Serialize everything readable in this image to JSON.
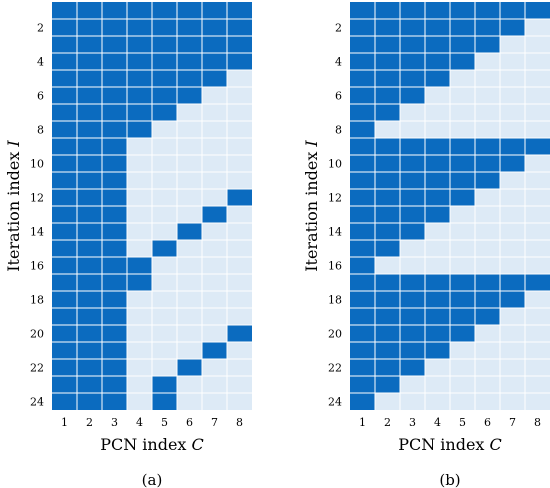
{
  "colors": {
    "active": "#0b6bbf",
    "inactive": "#ddeaf6",
    "gridline": "#ffffff"
  },
  "chart_data": [
    {
      "type": "heatmap",
      "caption": "(a)",
      "xlabel": "PCN index C",
      "ylabel": "Iteration index I",
      "x_ticks": [
        "1",
        "2",
        "3",
        "4",
        "5",
        "6",
        "7",
        "8"
      ],
      "y_ticks": [
        "2",
        "4",
        "6",
        "8",
        "10",
        "12",
        "14",
        "16",
        "18",
        "20",
        "22",
        "24"
      ],
      "rows": 24,
      "cols": 8,
      "cells": [
        [
          1,
          1,
          1,
          1,
          1,
          1,
          1,
          1
        ],
        [
          1,
          1,
          1,
          1,
          1,
          1,
          1,
          1
        ],
        [
          1,
          1,
          1,
          1,
          1,
          1,
          1,
          1
        ],
        [
          1,
          1,
          1,
          1,
          1,
          1,
          1,
          1
        ],
        [
          1,
          1,
          1,
          1,
          1,
          1,
          1,
          0
        ],
        [
          1,
          1,
          1,
          1,
          1,
          1,
          0,
          0
        ],
        [
          1,
          1,
          1,
          1,
          1,
          0,
          0,
          0
        ],
        [
          1,
          1,
          1,
          1,
          0,
          0,
          0,
          0
        ],
        [
          1,
          1,
          1,
          0,
          0,
          0,
          0,
          0
        ],
        [
          1,
          1,
          1,
          0,
          0,
          0,
          0,
          0
        ],
        [
          1,
          1,
          1,
          0,
          0,
          0,
          0,
          0
        ],
        [
          1,
          1,
          1,
          0,
          0,
          0,
          0,
          1
        ],
        [
          1,
          1,
          1,
          0,
          0,
          0,
          1,
          0
        ],
        [
          1,
          1,
          1,
          0,
          0,
          1,
          0,
          0
        ],
        [
          1,
          1,
          1,
          0,
          1,
          0,
          0,
          0
        ],
        [
          1,
          1,
          1,
          1,
          0,
          0,
          0,
          0
        ],
        [
          1,
          1,
          1,
          1,
          0,
          0,
          0,
          0
        ],
        [
          1,
          1,
          1,
          0,
          0,
          0,
          0,
          0
        ],
        [
          1,
          1,
          1,
          0,
          0,
          0,
          0,
          0
        ],
        [
          1,
          1,
          1,
          0,
          0,
          0,
          0,
          1
        ],
        [
          1,
          1,
          1,
          0,
          0,
          0,
          1,
          0
        ],
        [
          1,
          1,
          1,
          0,
          0,
          1,
          0,
          0
        ],
        [
          1,
          1,
          1,
          0,
          1,
          0,
          0,
          0
        ],
        [
          1,
          1,
          1,
          0,
          1,
          0,
          0,
          0
        ]
      ]
    },
    {
      "type": "heatmap",
      "caption": "(b)",
      "xlabel": "PCN index C",
      "ylabel": "Iteration index I",
      "x_ticks": [
        "1",
        "2",
        "3",
        "4",
        "5",
        "6",
        "7",
        "8"
      ],
      "y_ticks": [
        "2",
        "4",
        "6",
        "8",
        "10",
        "12",
        "14",
        "16",
        "18",
        "20",
        "22",
        "24"
      ],
      "rows": 24,
      "cols": 8,
      "cells": [
        [
          1,
          1,
          1,
          1,
          1,
          1,
          1,
          1
        ],
        [
          1,
          1,
          1,
          1,
          1,
          1,
          1,
          0
        ],
        [
          1,
          1,
          1,
          1,
          1,
          1,
          0,
          0
        ],
        [
          1,
          1,
          1,
          1,
          1,
          0,
          0,
          0
        ],
        [
          1,
          1,
          1,
          1,
          0,
          0,
          0,
          0
        ],
        [
          1,
          1,
          1,
          0,
          0,
          0,
          0,
          0
        ],
        [
          1,
          1,
          0,
          0,
          0,
          0,
          0,
          0
        ],
        [
          1,
          0,
          0,
          0,
          0,
          0,
          0,
          0
        ],
        [
          1,
          1,
          1,
          1,
          1,
          1,
          1,
          1
        ],
        [
          1,
          1,
          1,
          1,
          1,
          1,
          1,
          0
        ],
        [
          1,
          1,
          1,
          1,
          1,
          1,
          0,
          0
        ],
        [
          1,
          1,
          1,
          1,
          1,
          0,
          0,
          0
        ],
        [
          1,
          1,
          1,
          1,
          0,
          0,
          0,
          0
        ],
        [
          1,
          1,
          1,
          0,
          0,
          0,
          0,
          0
        ],
        [
          1,
          1,
          0,
          0,
          0,
          0,
          0,
          0
        ],
        [
          1,
          0,
          0,
          0,
          0,
          0,
          0,
          0
        ],
        [
          1,
          1,
          1,
          1,
          1,
          1,
          1,
          1
        ],
        [
          1,
          1,
          1,
          1,
          1,
          1,
          1,
          0
        ],
        [
          1,
          1,
          1,
          1,
          1,
          1,
          0,
          0
        ],
        [
          1,
          1,
          1,
          1,
          1,
          0,
          0,
          0
        ],
        [
          1,
          1,
          1,
          1,
          0,
          0,
          0,
          0
        ],
        [
          1,
          1,
          1,
          0,
          0,
          0,
          0,
          0
        ],
        [
          1,
          1,
          0,
          0,
          0,
          0,
          0,
          0
        ],
        [
          1,
          0,
          0,
          0,
          0,
          0,
          0,
          0
        ]
      ]
    }
  ]
}
